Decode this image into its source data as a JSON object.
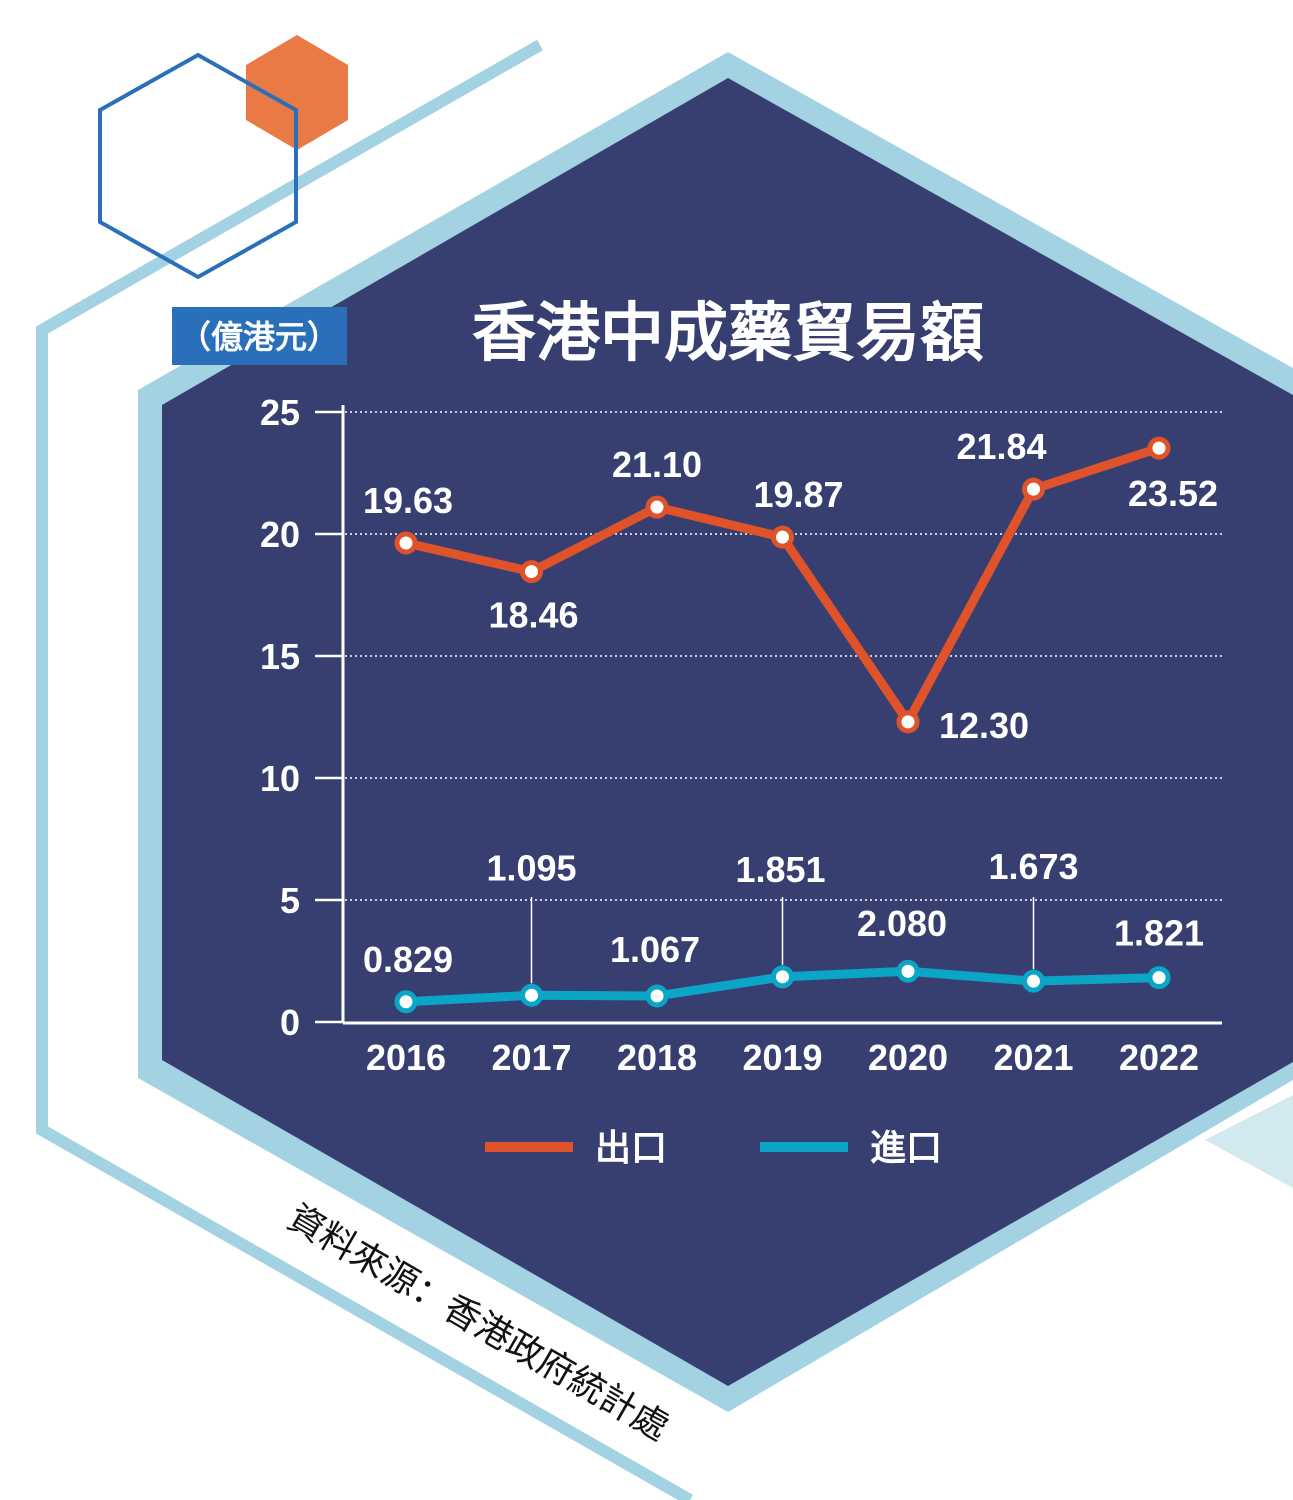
{
  "colors": {
    "navy": "#373f71",
    "light_blue": "#a3d3e2",
    "export": "#e0532a",
    "import": "#0ba5c7",
    "unit_badge": "#2a6fba",
    "orange_hex": "#e97a45",
    "blue_hex": "#2a6fba"
  },
  "chart_data": {
    "type": "line",
    "title": "香港中成藥貿易額",
    "unit_label": "（億港元）",
    "categories": [
      "2016",
      "2017",
      "2018",
      "2019",
      "2020",
      "2021",
      "2022"
    ],
    "yticks": [
      "0",
      "5",
      "10",
      "15",
      "20",
      "25"
    ],
    "ylim": [
      0,
      25
    ],
    "grid": true,
    "legend_position": "bottom",
    "series": [
      {
        "name": "出口",
        "values": [
          19.63,
          18.46,
          21.1,
          19.87,
          12.3,
          21.84,
          23.52
        ],
        "labels": [
          "19.63",
          "18.46",
          "21.10",
          "19.87",
          "12.30",
          "21.84",
          "23.52"
        ]
      },
      {
        "name": "進口",
        "values": [
          0.829,
          1.095,
          1.067,
          1.851,
          2.08,
          1.673,
          1.821
        ],
        "labels": [
          "0.829",
          "1.095",
          "1.067",
          "1.851",
          "2.080",
          "1.673",
          "1.821"
        ]
      }
    ],
    "source": "資料來源：香港政府統計處"
  }
}
